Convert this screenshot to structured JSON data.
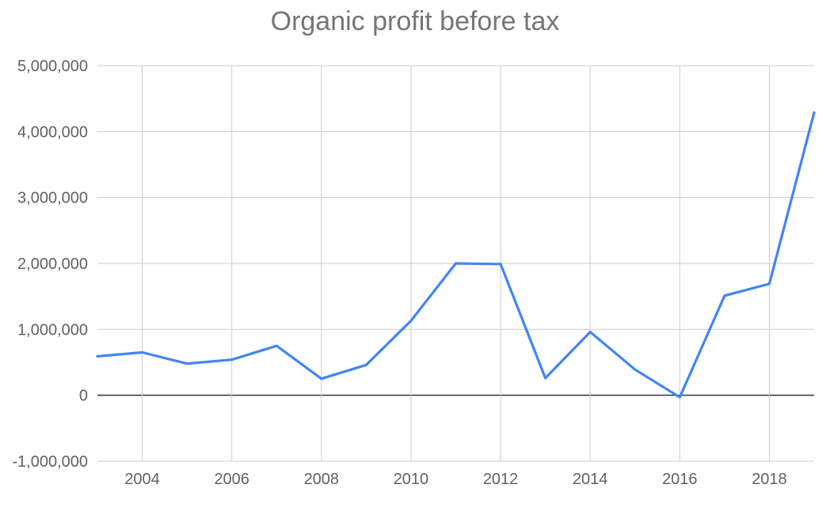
{
  "chart_data": {
    "type": "line",
    "title": "Organic profit before tax",
    "xlabel": "",
    "ylabel": "",
    "xlim": [
      2003,
      2019
    ],
    "ylim": [
      -1000000,
      5000000
    ],
    "x_ticks": [
      2004,
      2006,
      2008,
      2010,
      2012,
      2014,
      2016,
      2018
    ],
    "x_tick_labels": [
      "2004",
      "2006",
      "2008",
      "2010",
      "2012",
      "2014",
      "2016",
      "2018"
    ],
    "y_ticks": [
      -1000000,
      0,
      1000000,
      2000000,
      3000000,
      4000000,
      5000000
    ],
    "y_tick_labels": [
      "-1,000,000",
      "0",
      "1,000,000",
      "2,000,000",
      "3,000,000",
      "4,000,000",
      "5,000,000"
    ],
    "grid": true,
    "legend": "none",
    "series": [
      {
        "color": "#4285f4",
        "x": [
          2003,
          2004,
          2005,
          2006,
          2007,
          2008,
          2009,
          2010,
          2011,
          2012,
          2013,
          2014,
          2015,
          2016,
          2017,
          2018,
          2019
        ],
        "values": [
          590000,
          650000,
          480000,
          540000,
          750000,
          250000,
          460000,
          1130000,
          2000000,
          1990000,
          260000,
          960000,
          390000,
          -30000,
          1510000,
          1690000,
          4290000
        ]
      }
    ]
  }
}
